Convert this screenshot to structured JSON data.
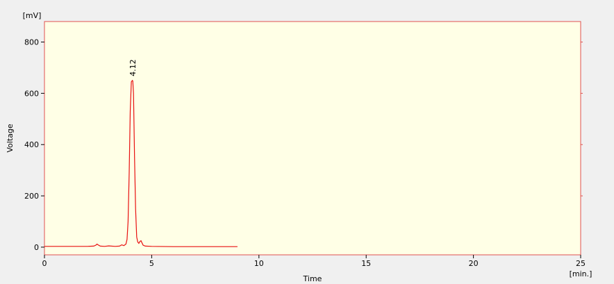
{
  "chart_data": {
    "type": "line",
    "title": "",
    "xlabel": "Time",
    "ylabel": "Voltage",
    "x_unit": "[min.]",
    "y_unit": "[mV]",
    "xlim": [
      0,
      25
    ],
    "ylim": [
      -30,
      880
    ],
    "x_ticks": [
      0,
      5,
      10,
      15,
      20,
      25
    ],
    "y_ticks": [
      0,
      200,
      400,
      600,
      800
    ],
    "grid": false,
    "legend": "none",
    "colors": {
      "background": "#f0f0f0",
      "plot_area": "#ffffe6",
      "frame": "#e05050",
      "trace": "#e81010"
    },
    "series": [
      {
        "x": [
          0.0,
          1.0,
          2.0,
          2.3,
          2.4,
          2.45,
          2.5,
          2.6,
          2.8,
          3.0,
          3.3,
          3.5,
          3.6,
          3.7,
          3.8,
          3.85,
          3.9,
          3.95,
          4.0,
          4.05,
          4.1,
          4.12,
          4.15,
          4.2,
          4.25,
          4.3,
          4.35,
          4.4,
          4.45,
          4.5,
          4.6,
          4.7,
          5.0,
          6.0,
          7.0,
          8.0,
          9.0
        ],
        "y": [
          3,
          3,
          3,
          4,
          8,
          12,
          9,
          4,
          3,
          5,
          3,
          4,
          9,
          6,
          12,
          30,
          100,
          290,
          530,
          645,
          650,
          648,
          600,
          350,
          150,
          40,
          20,
          15,
          22,
          25,
          8,
          4,
          3,
          2,
          2,
          2,
          2
        ]
      }
    ],
    "annotations": [
      {
        "x": 4.12,
        "y": 650,
        "text": "4.12"
      }
    ]
  }
}
